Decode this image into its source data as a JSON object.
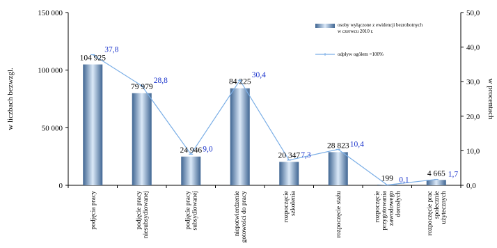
{
  "chart_data": {
    "type": "bar",
    "categories": [
      "podjęcia pracy",
      "podjęcie pracy niesubsydiowanej",
      "podjęcie pracy subsydiowanej",
      "niepotwierdzenie gotowości do pracy",
      "rozpoczęcie szkolenia",
      "rozpoczęcie stażu",
      "rozpoczęcie przygotowania zawodowego dorosłych",
      "rozpoczęcie prac społecznie użytecznych"
    ],
    "category_label_lines": [
      [
        "podjęcia pracy"
      ],
      [
        "podjęcie pracy",
        "niesubsydiowanej"
      ],
      [
        "podjęcie pracy",
        "subsydiowanej"
      ],
      [
        "niepotwierdzenie",
        "gotowości do pracy"
      ],
      [
        "rozpoczęcie",
        "szkolenia"
      ],
      [
        "rozpoczęcie stażu"
      ],
      [
        "rozpoczęcie",
        "przygotowania",
        "zawodowego",
        "dorosłych"
      ],
      [
        "rozpoczęcie prac",
        "społecznie",
        "użytecznych"
      ]
    ],
    "series": [
      {
        "name": "osoby wyłączone z ewidencji bezrobotnych w czerwcu 2010 r.",
        "type": "bar",
        "axis": "left",
        "values": [
          104925,
          79979,
          24946,
          84225,
          20347,
          28823,
          199,
          4665
        ],
        "value_labels": [
          "104 925",
          "79 979",
          "24 946",
          "84 225",
          "20 347",
          "28 823",
          "199",
          "4 665"
        ]
      },
      {
        "name": "odpływ ogółem =100%",
        "type": "line",
        "axis": "right",
        "values": [
          37.8,
          28.8,
          9.0,
          30.4,
          7.3,
          10.4,
          0.1,
          1.7
        ],
        "value_labels": [
          "37,8",
          "28,8",
          "9,0",
          "30,4",
          "7,3",
          "10,4",
          "0,1",
          "1,7"
        ],
        "color": "#7aaee6"
      }
    ],
    "left_axis": {
      "label": "w liczbach bezwzgl.",
      "range": [
        0,
        150000
      ],
      "ticks": [
        0,
        50000,
        100000,
        150000
      ],
      "tick_labels": [
        "0",
        "50 000",
        "100 000",
        "150 000"
      ]
    },
    "right_axis": {
      "label": "w procentach",
      "range": [
        0,
        50
      ],
      "ticks": [
        0,
        10,
        20,
        30,
        40,
        50
      ],
      "tick_labels": [
        "0,0",
        "10,0",
        "20,0",
        "30,0",
        "40,0",
        "50,0"
      ]
    },
    "legend": {
      "placement": "top-right",
      "labels": [
        [
          "osoby wyłączone z ewidencji bezrobotnych",
          "w czerwcu 2010 r."
        ],
        [
          "odpływ ogółem =100%"
        ]
      ]
    },
    "grid": false,
    "colors": {
      "bar_dark": "#3f6592",
      "bar_light": "#dbe9f8",
      "line": "#7aaee6",
      "percent_label": "#1a33cc"
    }
  }
}
